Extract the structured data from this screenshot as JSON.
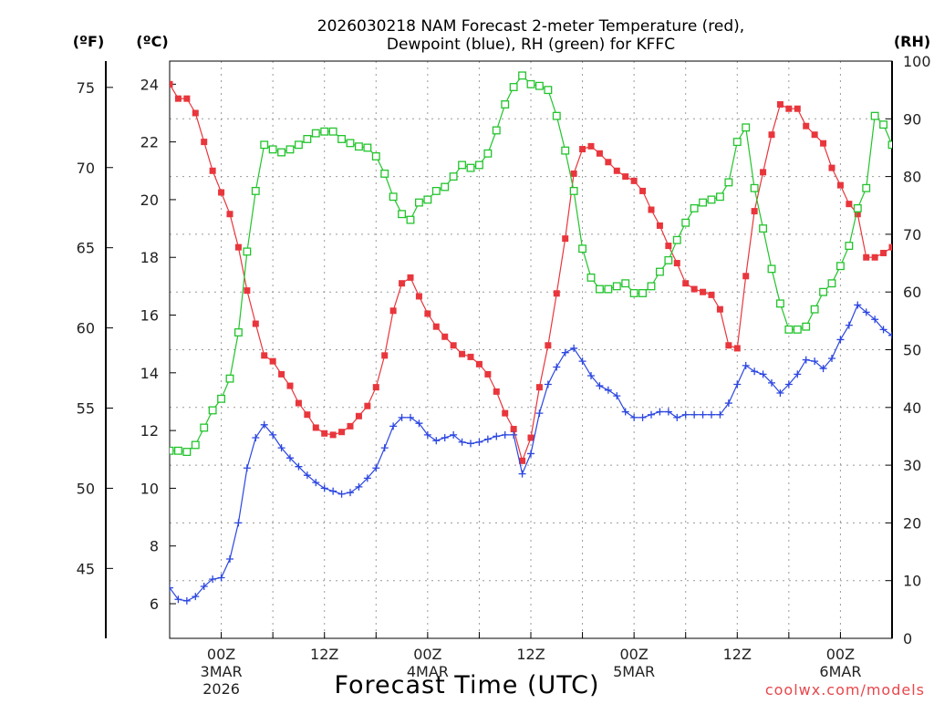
{
  "chart_data": {
    "type": "line",
    "title_lines": [
      "2026030218 NAM Forecast 2-meter Temperature (red),",
      "Dewpoint (blue), RH (green) for KFFC"
    ],
    "xlabel": "Forecast Time (UTC)",
    "credit": "coolwx.com/models",
    "left_axis_f": {
      "unit": "(ºF)",
      "ticks": [
        "45",
        "50",
        "55",
        "60",
        "65",
        "70",
        "75"
      ]
    },
    "left_axis_c": {
      "unit": "(ºC)",
      "ylim": [
        4.8,
        24.8
      ],
      "ticks": [
        "6",
        "8",
        "10",
        "12",
        "14",
        "16",
        "18",
        "20",
        "22",
        "24"
      ]
    },
    "right_axis_rh": {
      "unit": "(RH)",
      "ylim": [
        0,
        100
      ],
      "ticks": [
        "0",
        "10",
        "20",
        "30",
        "40",
        "50",
        "60",
        "70",
        "80",
        "90",
        "100"
      ]
    },
    "x_axis": {
      "unit": "forecast hour",
      "xlim": [
        0,
        84
      ],
      "ticks": [
        {
          "hour": 6,
          "time": "00Z",
          "date": "3MAR",
          "year": "2026"
        },
        {
          "hour": 18,
          "time": "12Z",
          "date": "",
          "year": ""
        },
        {
          "hour": 30,
          "time": "00Z",
          "date": "4MAR",
          "year": ""
        },
        {
          "hour": 42,
          "time": "12Z",
          "date": "",
          "year": ""
        },
        {
          "hour": 54,
          "time": "00Z",
          "date": "5MAR",
          "year": ""
        },
        {
          "hour": 66,
          "time": "12Z",
          "date": "",
          "year": ""
        },
        {
          "hour": 78,
          "time": "00Z",
          "date": "6MAR",
          "year": ""
        }
      ]
    },
    "series": [
      {
        "name": "2-meter Temperature",
        "units": "°C",
        "color": "#e8363c",
        "marker": "filled-square",
        "x": [
          0,
          1,
          2,
          3,
          4,
          5,
          6,
          7,
          8,
          9,
          10,
          11,
          12,
          13,
          14,
          15,
          16,
          17,
          18,
          19,
          20,
          21,
          22,
          23,
          24,
          25,
          26,
          27,
          28,
          29,
          30,
          31,
          32,
          33,
          34,
          35,
          36,
          37,
          38,
          39,
          40,
          41,
          42,
          43,
          44,
          45,
          46,
          47,
          48,
          49,
          50,
          51,
          52,
          53,
          54,
          55,
          56,
          57,
          58,
          59,
          60,
          61,
          62,
          63,
          64,
          65,
          66,
          67,
          68,
          69,
          70,
          71,
          72,
          73,
          74,
          75,
          76,
          77,
          78,
          79,
          80,
          81,
          82,
          83,
          84
        ],
        "values": [
          24.0,
          23.5,
          23.5,
          23.0,
          22.0,
          21.0,
          20.25,
          19.5,
          18.35,
          16.85,
          15.7,
          14.6,
          14.4,
          13.95,
          13.55,
          12.95,
          12.55,
          12.1,
          11.9,
          11.85,
          11.95,
          12.15,
          12.5,
          12.85,
          13.5,
          14.6,
          16.15,
          17.1,
          17.3,
          16.65,
          16.05,
          15.6,
          15.25,
          14.95,
          14.65,
          14.55,
          14.3,
          13.95,
          13.35,
          12.6,
          12.05,
          10.95,
          11.75,
          13.5,
          14.95,
          16.75,
          18.65,
          20.9,
          21.75,
          21.85,
          21.6,
          21.3,
          21.0,
          20.8,
          20.65,
          20.3,
          19.65,
          19.1,
          18.4,
          17.8,
          17.1,
          16.9,
          16.8,
          16.7,
          16.2,
          14.95,
          14.85,
          17.35,
          19.6,
          20.95,
          22.25,
          23.3,
          23.15,
          23.15,
          22.55,
          22.25,
          21.95,
          21.1,
          20.5,
          19.85,
          19.5,
          18.0,
          18.0,
          18.15,
          18.35
        ]
      },
      {
        "name": "Dewpoint",
        "units": "°C",
        "color": "#2b46e0",
        "marker": "plus",
        "x": [
          0,
          1,
          2,
          3,
          4,
          5,
          6,
          7,
          8,
          9,
          10,
          11,
          12,
          13,
          14,
          15,
          16,
          17,
          18,
          19,
          20,
          21,
          22,
          23,
          24,
          25,
          26,
          27,
          28,
          29,
          30,
          31,
          32,
          33,
          34,
          35,
          36,
          37,
          38,
          39,
          40,
          41,
          42,
          43,
          44,
          45,
          46,
          47,
          48,
          49,
          50,
          51,
          52,
          53,
          54,
          55,
          56,
          57,
          58,
          59,
          60,
          61,
          62,
          63,
          64,
          65,
          66,
          67,
          68,
          69,
          70,
          71,
          72,
          73,
          74,
          75,
          76,
          77,
          78,
          79,
          80,
          81,
          82,
          83,
          84
        ],
        "values": [
          6.55,
          6.15,
          6.1,
          6.25,
          6.6,
          6.85,
          6.9,
          7.55,
          8.8,
          10.7,
          11.75,
          12.2,
          11.85,
          11.4,
          11.05,
          10.75,
          10.45,
          10.2,
          10.0,
          9.9,
          9.8,
          9.85,
          10.05,
          10.35,
          10.7,
          11.4,
          12.15,
          12.45,
          12.45,
          12.25,
          11.85,
          11.65,
          11.75,
          11.85,
          11.6,
          11.55,
          11.6,
          11.7,
          11.8,
          11.85,
          11.85,
          10.5,
          11.2,
          12.6,
          13.6,
          14.2,
          14.7,
          14.85,
          14.4,
          13.9,
          13.55,
          13.4,
          13.2,
          12.65,
          12.45,
          12.45,
          12.55,
          12.65,
          12.65,
          12.45,
          12.55,
          12.55,
          12.55,
          12.55,
          12.55,
          12.95,
          13.6,
          14.25,
          14.05,
          13.95,
          13.65,
          13.3,
          13.6,
          13.95,
          14.45,
          14.4,
          14.15,
          14.5,
          15.15,
          15.65,
          16.35,
          16.1,
          15.85,
          15.5,
          15.3
        ]
      },
      {
        "name": "RH",
        "units": "%",
        "color": "#22c42c",
        "marker": "hollow-square",
        "x": [
          0,
          1,
          2,
          3,
          4,
          5,
          6,
          7,
          8,
          9,
          10,
          11,
          12,
          13,
          14,
          15,
          16,
          17,
          18,
          19,
          20,
          21,
          22,
          23,
          24,
          25,
          26,
          27,
          28,
          29,
          30,
          31,
          32,
          33,
          34,
          35,
          36,
          37,
          38,
          39,
          40,
          41,
          42,
          43,
          44,
          45,
          46,
          47,
          48,
          49,
          50,
          51,
          52,
          53,
          54,
          55,
          56,
          57,
          58,
          59,
          60,
          61,
          62,
          63,
          64,
          65,
          66,
          67,
          68,
          69,
          70,
          71,
          72,
          73,
          74,
          75,
          76,
          77,
          78,
          79,
          80,
          81,
          82,
          83,
          84
        ],
        "values": [
          32.5,
          32.5,
          32.3,
          33.5,
          36.5,
          39.5,
          41.5,
          45.0,
          53.0,
          67.0,
          77.5,
          85.5,
          84.7,
          84.2,
          84.7,
          85.5,
          86.5,
          87.5,
          87.8,
          87.8,
          86.5,
          85.8,
          85.2,
          85.0,
          83.5,
          80.5,
          76.5,
          73.5,
          72.5,
          75.5,
          76.0,
          77.5,
          78.2,
          80.0,
          82.0,
          81.5,
          82.0,
          84.0,
          88.0,
          92.5,
          95.5,
          97.5,
          96.0,
          95.7,
          95.0,
          90.5,
          84.5,
          77.5,
          67.5,
          62.5,
          60.5,
          60.5,
          61.0,
          61.5,
          59.8,
          59.8,
          61.0,
          63.5,
          65.5,
          69.0,
          72.0,
          74.5,
          75.5,
          76.0,
          76.5,
          79.0,
          86.0,
          88.5,
          78.0,
          71.0,
          64.0,
          58.0,
          53.5,
          53.5,
          54.0,
          57.0,
          60.0,
          61.5,
          64.5,
          68.0,
          74.5,
          78.0,
          90.5,
          89.0,
          85.5
        ]
      }
    ]
  }
}
